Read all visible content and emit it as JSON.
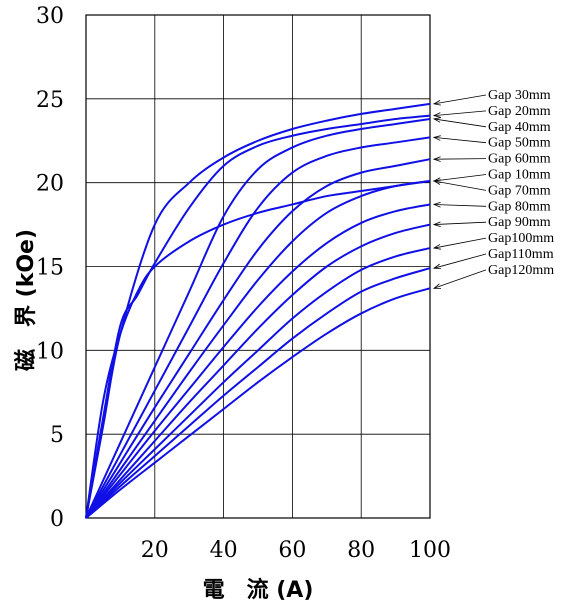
{
  "chart_data": {
    "type": "line",
    "xlabel": "電　流 (A)",
    "ylabel": "磁　界 (kOe)",
    "xlim": [
      0,
      100
    ],
    "ylim": [
      0,
      30
    ],
    "xticks": [
      20,
      40,
      60,
      80,
      100
    ],
    "xtick_labels": [
      "20",
      "40",
      "60",
      "80",
      "100"
    ],
    "yticks": [
      0,
      5,
      10,
      15,
      20,
      25,
      30
    ],
    "ytick_labels": [
      "0",
      "5",
      "10",
      "15",
      "20",
      "25",
      "30"
    ],
    "grid": true,
    "legend_position": "right",
    "series_color": "#1010e6",
    "series": [
      {
        "name": "Gap 30mm",
        "x": [
          0,
          5,
          10,
          20,
          30,
          40,
          50,
          60,
          70,
          80,
          90,
          100
        ],
        "y": [
          0,
          5.5,
          11,
          17.5,
          20,
          21.5,
          22.5,
          23.2,
          23.7,
          24.1,
          24.4,
          24.7
        ]
      },
      {
        "name": "Gap 20mm",
        "x": [
          0,
          5,
          10,
          15,
          20,
          30,
          40,
          50,
          60,
          70,
          80,
          90,
          100
        ],
        "y": [
          0,
          6,
          11.5,
          13.3,
          15.2,
          18.5,
          21,
          22.2,
          22.8,
          23.2,
          23.5,
          23.8,
          24.0
        ]
      },
      {
        "name": "Gap 40mm",
        "x": [
          0,
          10,
          20,
          30,
          40,
          50,
          60,
          70,
          80,
          90,
          100
        ],
        "y": [
          0,
          4.5,
          9,
          13.5,
          18,
          20.8,
          22.1,
          22.8,
          23.2,
          23.5,
          23.8
        ]
      },
      {
        "name": "Gap 50mm",
        "x": [
          0,
          10,
          20,
          30,
          40,
          50,
          60,
          70,
          80,
          90,
          100
        ],
        "y": [
          0,
          3.8,
          7.6,
          11.4,
          15.2,
          18.5,
          20.6,
          21.6,
          22.1,
          22.4,
          22.7
        ]
      },
      {
        "name": "Gap 60mm",
        "x": [
          0,
          10,
          20,
          30,
          40,
          50,
          60,
          70,
          80,
          90,
          100
        ],
        "y": [
          0,
          3.3,
          6.6,
          9.8,
          13,
          16,
          18.3,
          19.8,
          20.6,
          21,
          21.4
        ]
      },
      {
        "name": "Gap 10mm",
        "x": [
          0,
          5,
          10,
          15,
          20,
          30,
          40,
          50,
          60,
          70,
          80,
          90,
          100
        ],
        "y": [
          0,
          7,
          11,
          13.5,
          15,
          16.5,
          17.5,
          18.2,
          18.7,
          19.2,
          19.5,
          19.8,
          20.1
        ]
      },
      {
        "name": "Gap 70mm",
        "x": [
          0,
          10,
          20,
          30,
          40,
          50,
          60,
          70,
          80,
          90,
          100
        ],
        "y": [
          0,
          2.9,
          5.8,
          8.7,
          11.5,
          14.2,
          16.5,
          18.2,
          19.2,
          19.8,
          20.1
        ]
      },
      {
        "name": "Gap 80mm",
        "x": [
          0,
          10,
          20,
          30,
          40,
          50,
          60,
          70,
          80,
          90,
          100
        ],
        "y": [
          0,
          2.6,
          5.2,
          7.7,
          10.2,
          12.6,
          14.7,
          16.4,
          17.6,
          18.3,
          18.7
        ]
      },
      {
        "name": "Gap 90mm",
        "x": [
          0,
          10,
          20,
          30,
          40,
          50,
          60,
          70,
          80,
          90,
          100
        ],
        "y": [
          0,
          2.3,
          4.6,
          6.9,
          9.1,
          11.3,
          13.3,
          15,
          16.2,
          17,
          17.5
        ]
      },
      {
        "name": "Gap100mm",
        "x": [
          0,
          10,
          20,
          30,
          40,
          50,
          60,
          70,
          80,
          90,
          100
        ],
        "y": [
          0,
          2.1,
          4.1,
          6.1,
          8.1,
          10,
          11.9,
          13.5,
          14.8,
          15.6,
          16.1
        ]
      },
      {
        "name": "Gap110mm",
        "x": [
          0,
          10,
          20,
          30,
          40,
          50,
          60,
          70,
          80,
          90,
          100
        ],
        "y": [
          0,
          1.9,
          3.7,
          5.5,
          7.3,
          9,
          10.7,
          12.2,
          13.5,
          14.3,
          14.9
        ]
      },
      {
        "name": "Gap120mm",
        "x": [
          0,
          10,
          20,
          30,
          40,
          50,
          60,
          70,
          80,
          90,
          100
        ],
        "y": [
          0,
          1.7,
          3.3,
          4.9,
          6.5,
          8.1,
          9.6,
          11,
          12.2,
          13.1,
          13.7
        ]
      }
    ]
  }
}
